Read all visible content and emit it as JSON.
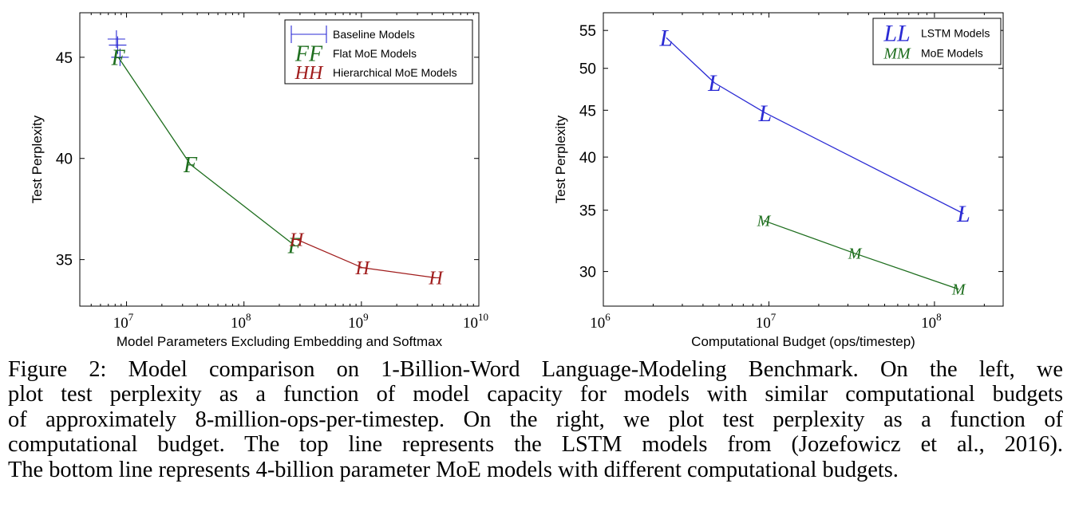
{
  "chart_data": [
    {
      "type": "line",
      "xscale": "log",
      "xlabel": "Model Parameters Excluding Embedding and Softmax",
      "ylabel": "Test Perplexity",
      "xlim": [
        4000000,
        10000000000
      ],
      "ylim": [
        32.7,
        47.2
      ],
      "x_ticks": [
        {
          "value": 10000000,
          "base": "10",
          "exp": "7"
        },
        {
          "value": 100000000,
          "base": "10",
          "exp": "8"
        },
        {
          "value": 1000000000,
          "base": "10",
          "exp": "9"
        },
        {
          "value": 10000000000,
          "base": "10",
          "exp": "10"
        }
      ],
      "y_ticks": [
        35,
        40,
        45
      ],
      "legend_position": "top-right",
      "series": [
        {
          "name": "Baseline Models",
          "marker": "+",
          "color": "#2b2bd4",
          "line": false,
          "points": [
            {
              "x": 8200000,
              "y": 45.9
            },
            {
              "x": 8400000,
              "y": 45.6
            },
            {
              "x": 8800000,
              "y": 45.0
            }
          ]
        },
        {
          "name": "Flat MoE Models",
          "marker": "F",
          "color": "#1e6e1e",
          "line": true,
          "points": [
            {
              "x": 8500000,
              "y": 45.0
            },
            {
              "x": 35000000,
              "y": 39.7
            },
            {
              "x": 270000000,
              "y": 35.7
            }
          ]
        },
        {
          "name": "Hierarchical MoE Models",
          "marker": "H",
          "color": "#a01c1c",
          "line": true,
          "points": [
            {
              "x": 280000000,
              "y": 36.0
            },
            {
              "x": 1020000000,
              "y": 34.6
            },
            {
              "x": 4300000000,
              "y": 34.1
            }
          ]
        }
      ]
    },
    {
      "type": "line",
      "xscale": "log",
      "yscale": "log",
      "xlabel": "Computational Budget (ops/timestep)",
      "ylabel": "Test Perplexity",
      "xlim": [
        1000000,
        260000000
      ],
      "ylim": [
        27.5,
        57.5
      ],
      "x_ticks": [
        {
          "value": 1000000,
          "base": "10",
          "exp": "6"
        },
        {
          "value": 10000000,
          "base": "10",
          "exp": "7"
        },
        {
          "value": 100000000,
          "base": "10",
          "exp": "8"
        }
      ],
      "y_ticks": [
        30,
        35,
        40,
        45,
        50,
        55
      ],
      "legend_position": "top-right",
      "series": [
        {
          "name": "LSTM Models",
          "marker": "L",
          "color": "#2b2bd4",
          "line": true,
          "points": [
            {
              "x": 2400000,
              "y": 54.0
            },
            {
              "x": 4700000,
              "y": 48.2
            },
            {
              "x": 9500000,
              "y": 44.7
            },
            {
              "x": 150000000,
              "y": 34.7
            }
          ]
        },
        {
          "name": "MoE Models",
          "marker": "M",
          "color": "#1e6e1e",
          "line": true,
          "points": [
            {
              "x": 9300000,
              "y": 34.1
            },
            {
              "x": 33000000,
              "y": 31.4
            },
            {
              "x": 140000000,
              "y": 28.7
            }
          ]
        }
      ]
    }
  ],
  "caption": {
    "lines": [
      "Figure 2: Model comparison on 1-Billion-Word Language-Modeling Benchmark. On the left, we",
      "plot test perplexity as a function of model capacity for models with similar computational budgets",
      "of approximately 8-million-ops-per-timestep. On the right, we plot test perplexity as a function of",
      "computational budget. The top line represents the LSTM models from (Jozefowicz et al., 2016).",
      "The bottom line represents 4-billion parameter MoE models with different computational budgets."
    ]
  }
}
